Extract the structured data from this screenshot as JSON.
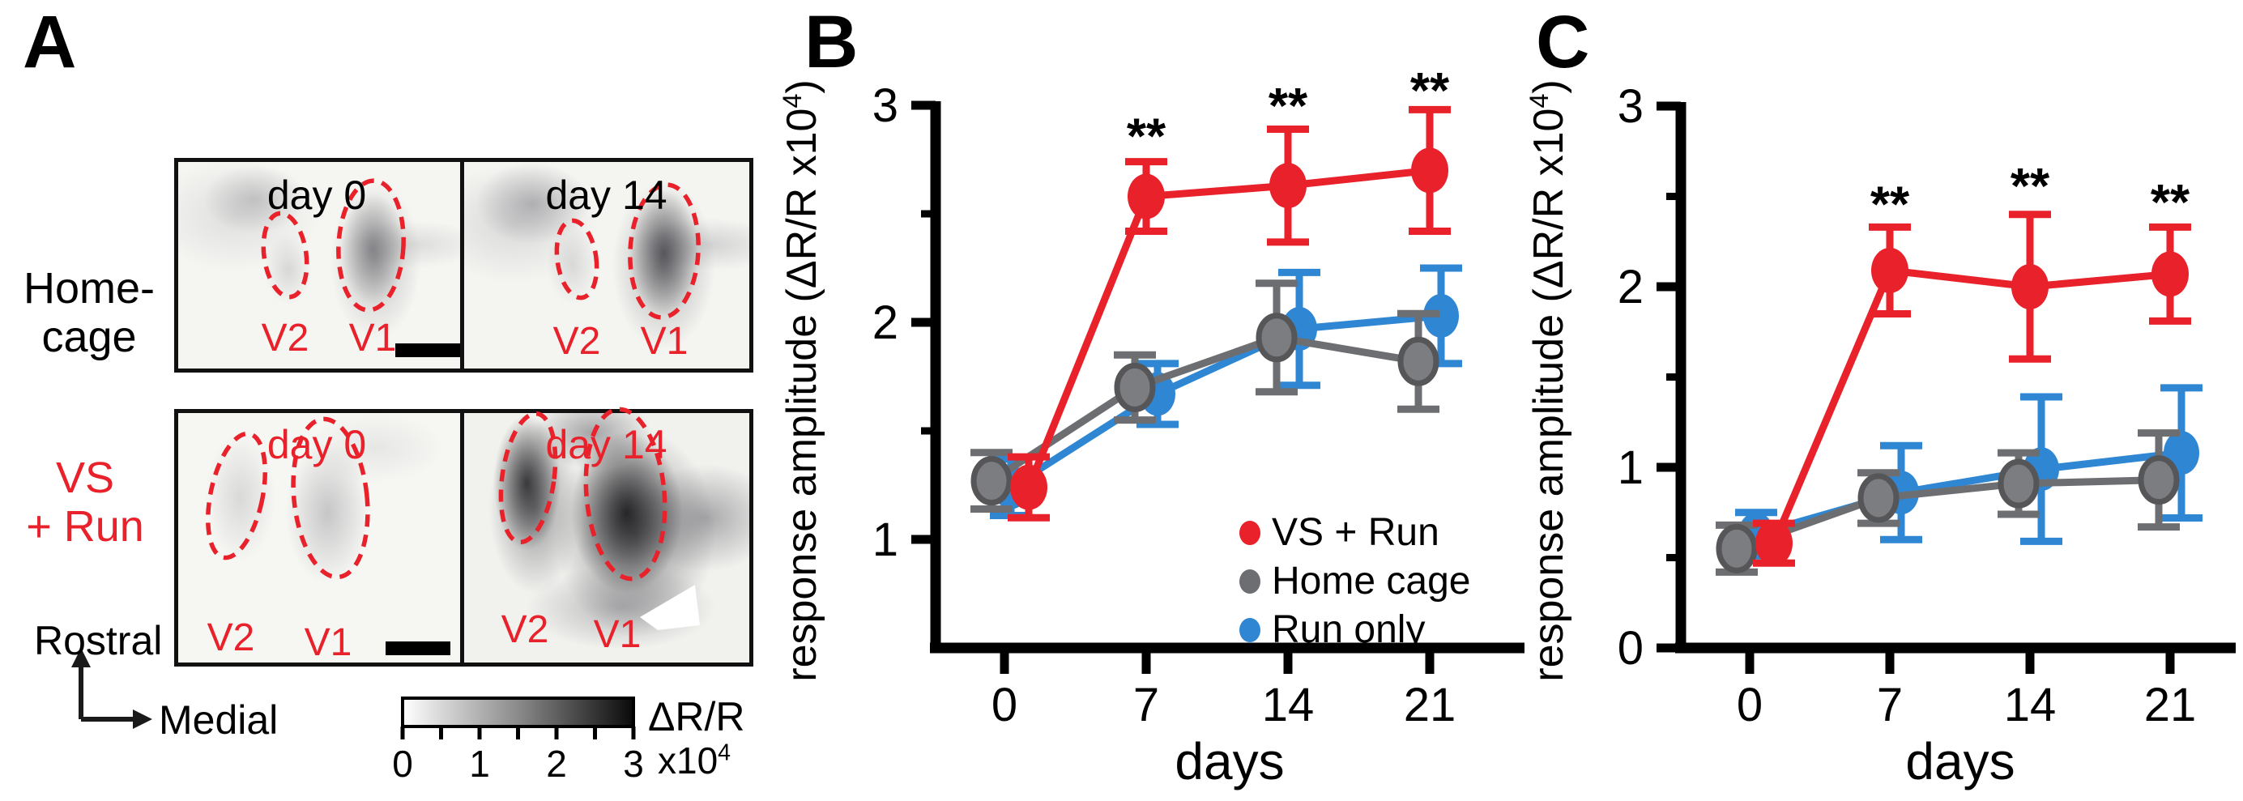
{
  "figure": {
    "panels": {
      "a": "A",
      "b": "B",
      "c": "C"
    },
    "panel_a": {
      "row_top_label_line1": "Home-",
      "row_top_label_line2": "cage",
      "row_bottom_label_line1": "VS",
      "row_bottom_label_line2": "+ Run",
      "top_day_labels": [
        "day 0",
        "day 14"
      ],
      "bottom_day_labels": [
        "day 0",
        "day 14"
      ],
      "region_labels": {
        "v2": "V2",
        "v1": "V1"
      },
      "compass": {
        "vertical": "Rostral",
        "horizontal": "Medial"
      },
      "colorbar": {
        "tick_labels": [
          "0",
          "1",
          "2",
          "3"
        ],
        "label": "ΔR/R",
        "exp_base": "x10",
        "exp_sup": "4"
      }
    }
  },
  "colors": {
    "red": "#e8212a",
    "gray": "#6d6e71",
    "gray_marker_fill": "#7c7d80",
    "gray_marker_stroke": "#565659",
    "blue": "#2f87d4",
    "black": "#000000"
  },
  "chart_data": [
    {
      "id": "B",
      "type": "line",
      "x_label": "days",
      "y_label_parts": {
        "main": "response amplitude (ΔR/R x10",
        "sup": "4",
        "close": ")"
      },
      "x_days": [
        0,
        7,
        14,
        21
      ],
      "x_tick_labels": [
        "0",
        "7",
        "14",
        "21"
      ],
      "ylim": [
        0.5,
        3
      ],
      "y_major_ticks": [
        {
          "v": 1,
          "label": "1"
        },
        {
          "v": 2,
          "label": "2"
        },
        {
          "v": 3,
          "label": "3"
        }
      ],
      "y_minor_ticks": [
        1.5,
        2.5
      ],
      "grid": false,
      "legend_position": "inside-right",
      "series": [
        {
          "name": "VS + Run",
          "color_key": "red",
          "values": [
            1.24,
            2.58,
            2.63,
            2.7
          ],
          "errors": [
            0.14,
            0.16,
            0.26,
            0.28
          ]
        },
        {
          "name": "Home cage",
          "color_key": "gray",
          "values": [
            1.27,
            1.7,
            1.93,
            1.82
          ],
          "errors": [
            0.13,
            0.15,
            0.25,
            0.22
          ]
        },
        {
          "name": "Run only",
          "color_key": "blue",
          "values": [
            1.24,
            1.67,
            1.97,
            2.03
          ],
          "errors": [
            0.13,
            0.14,
            0.26,
            0.22
          ]
        }
      ],
      "significance": [
        {
          "day": 7,
          "y": 2.86,
          "text": "**"
        },
        {
          "day": 14,
          "y": 3.0,
          "text": "**"
        },
        {
          "day": 21,
          "y": 3.07,
          "text": "**"
        }
      ]
    },
    {
      "id": "C",
      "type": "line",
      "x_label": "days",
      "y_label_parts": {
        "main": "response amplitude (ΔR/R x10",
        "sup": "4",
        "close": ")"
      },
      "x_days": [
        0,
        7,
        14,
        21
      ],
      "x_tick_labels": [
        "0",
        "7",
        "14",
        "21"
      ],
      "ylim": [
        0,
        3
      ],
      "y_major_ticks": [
        {
          "v": 0,
          "label": "0"
        },
        {
          "v": 1,
          "label": "1"
        },
        {
          "v": 2,
          "label": "2"
        },
        {
          "v": 3,
          "label": "3"
        }
      ],
      "y_minor_ticks": [
        0.5,
        1.5,
        2.5
      ],
      "grid": false,
      "legend_position": "none",
      "series": [
        {
          "name": "VS + Run",
          "color_key": "red",
          "values": [
            0.58,
            2.09,
            2.0,
            2.07
          ],
          "errors": [
            0.11,
            0.24,
            0.4,
            0.26
          ]
        },
        {
          "name": "Home cage",
          "color_key": "gray",
          "values": [
            0.55,
            0.83,
            0.91,
            0.93
          ],
          "errors": [
            0.13,
            0.14,
            0.17,
            0.26
          ]
        },
        {
          "name": "Run only",
          "color_key": "blue",
          "values": [
            0.63,
            0.86,
            0.99,
            1.08
          ],
          "errors": [
            0.12,
            0.26,
            0.4,
            0.36
          ]
        }
      ],
      "significance": [
        {
          "day": 7,
          "y": 2.46,
          "text": "**"
        },
        {
          "day": 14,
          "y": 2.56,
          "text": "**"
        },
        {
          "day": 21,
          "y": 2.47,
          "text": "**"
        }
      ]
    }
  ]
}
